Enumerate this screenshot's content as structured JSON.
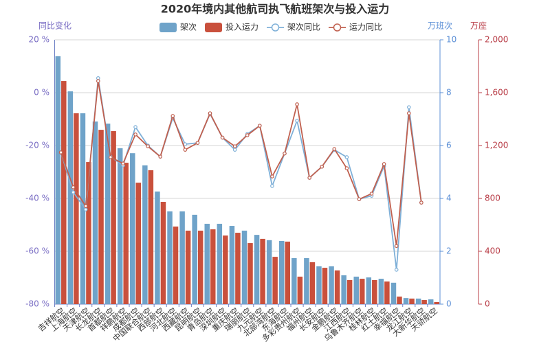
{
  "chart_data": {
    "type": "bar",
    "title": "2020年境内其他航司执飞航班架次与投入运力",
    "y_label": "同比变化",
    "y2_label": "万班次",
    "y3_label": "万座",
    "categories": [
      "吉祥航空",
      "上海航空",
      "天津航空",
      "长龙航空",
      "首都航空",
      "祥鹏航空",
      "成都航空",
      "中国联合航空",
      "西部航空",
      "河北航空",
      "西藏航空",
      "昆明航空",
      "青岛航空",
      "深圳航空",
      "重庆航空",
      "瑞丽航空",
      "九元航空",
      "北部湾航空",
      "东海航空",
      "多彩贵州航空",
      "福州航空",
      "长安航空",
      "金鹏航空",
      "江西航空",
      "乌鲁木齐航空",
      "桂林航空",
      "红土航空",
      "幸福航空",
      "龙江航空",
      "大新华航空",
      "天骄航空"
    ],
    "ylim": [
      -80,
      20
    ],
    "yticks": [
      {
        "value": -80,
        "label": "-80 %"
      },
      {
        "value": -60,
        "label": "-60 %"
      },
      {
        "value": -40,
        "label": "-40 %"
      },
      {
        "value": -20,
        "label": "-20 %"
      },
      {
        "value": 0,
        "label": "0 %"
      },
      {
        "value": 20,
        "label": "20 %"
      }
    ],
    "y2lim": [
      0,
      10
    ],
    "y2ticks": [
      0,
      2,
      4,
      6,
      8,
      10
    ],
    "y3lim": [
      0,
      2000
    ],
    "y3ticks": [
      0,
      400,
      800,
      {
        "value": 1200,
        "label": "1,200"
      },
      {
        "value": 1600,
        "label": "1,600"
      },
      {
        "value": 2000,
        "label": "2,000"
      }
    ],
    "grid": true,
    "legend": "top",
    "series": [
      {
        "name": "架次",
        "type": "bar",
        "axis": "y2",
        "color": "#6fa3c9",
        "values": [
          9.38,
          8.05,
          7.22,
          6.91,
          6.83,
          5.9,
          5.71,
          5.25,
          4.26,
          3.51,
          3.51,
          3.38,
          3.04,
          3.04,
          2.96,
          2.78,
          2.62,
          2.42,
          2.39,
          1.74,
          1.74,
          1.43,
          1.43,
          1.09,
          1.04,
          1.01,
          0.96,
          0.81,
          0.23,
          0.21,
          0.18
        ]
      },
      {
        "name": "投入运力",
        "type": "bar",
        "axis": "y3",
        "color": "#c9503c",
        "values": [
          1688,
          1444,
          1075,
          1319,
          1309,
          1070,
          919,
          1013,
          774,
          587,
          556,
          556,
          566,
          519,
          540,
          462,
          494,
          358,
          473,
          208,
          317,
          275,
          255,
          182,
          192,
          182,
          171,
          57,
          42,
          31,
          16
        ]
      },
      {
        "name": "架次同比",
        "type": "line",
        "axis": "y",
        "color": "#7fb0d8",
        "values": [
          -22.6,
          -37.7,
          -44.2,
          5.5,
          -24.2,
          -27.5,
          -13,
          -20,
          -24.2,
          -9.6,
          -19.5,
          -19,
          -8,
          -17,
          -21.6,
          -15.6,
          -12.5,
          -35.3,
          -23,
          -10.6,
          -32.2,
          -28,
          -21.6,
          -24.4,
          -40.3,
          -39,
          -27.8,
          -67,
          -5.5,
          -41.6,
          null
        ]
      },
      {
        "name": "运力同比",
        "type": "line",
        "axis": "y",
        "color": "#c0604f",
        "values": [
          -22.6,
          -35.8,
          -42.9,
          4.4,
          -24.4,
          -26.8,
          -15.8,
          -20.3,
          -24.2,
          -8.8,
          -21.6,
          -19,
          -7.8,
          -17,
          -20.3,
          -16.1,
          -12.5,
          -31.7,
          -23,
          -4.4,
          -32.2,
          -28,
          -21.3,
          -28.6,
          -40.3,
          -38.2,
          -27,
          -58,
          -7.8,
          -41.6,
          null
        ]
      }
    ]
  }
}
